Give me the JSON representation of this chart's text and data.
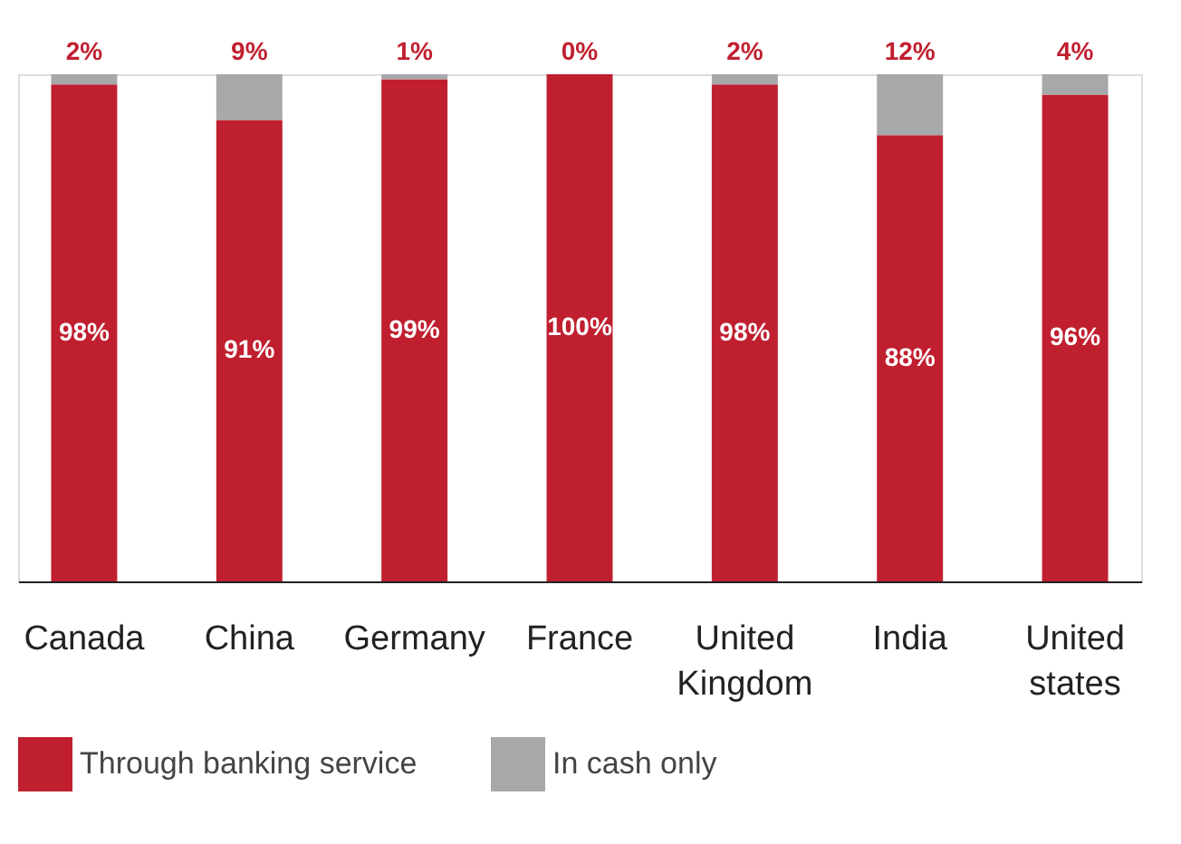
{
  "chart_data": {
    "type": "bar",
    "stacked": true,
    "categories": [
      "Canada",
      "China",
      "Germany",
      "France",
      "United Kingdom",
      "India",
      "United states"
    ],
    "series": [
      {
        "name": "Through banking service",
        "color": "#c01f2f",
        "values": [
          98,
          91,
          99,
          100,
          98,
          88,
          96
        ],
        "value_labels": [
          "98%",
          "91%",
          "99%",
          "100%",
          "98%",
          "88%",
          "96%"
        ]
      },
      {
        "name": "In cash only",
        "color": "#a6a8a9",
        "values": [
          2,
          9,
          1,
          0,
          2,
          12,
          4
        ],
        "value_labels": [
          "2%",
          "9%",
          "1%",
          "0%",
          "2%",
          "12%",
          "4%"
        ]
      }
    ],
    "legend": "bottom",
    "grid": false
  }
}
